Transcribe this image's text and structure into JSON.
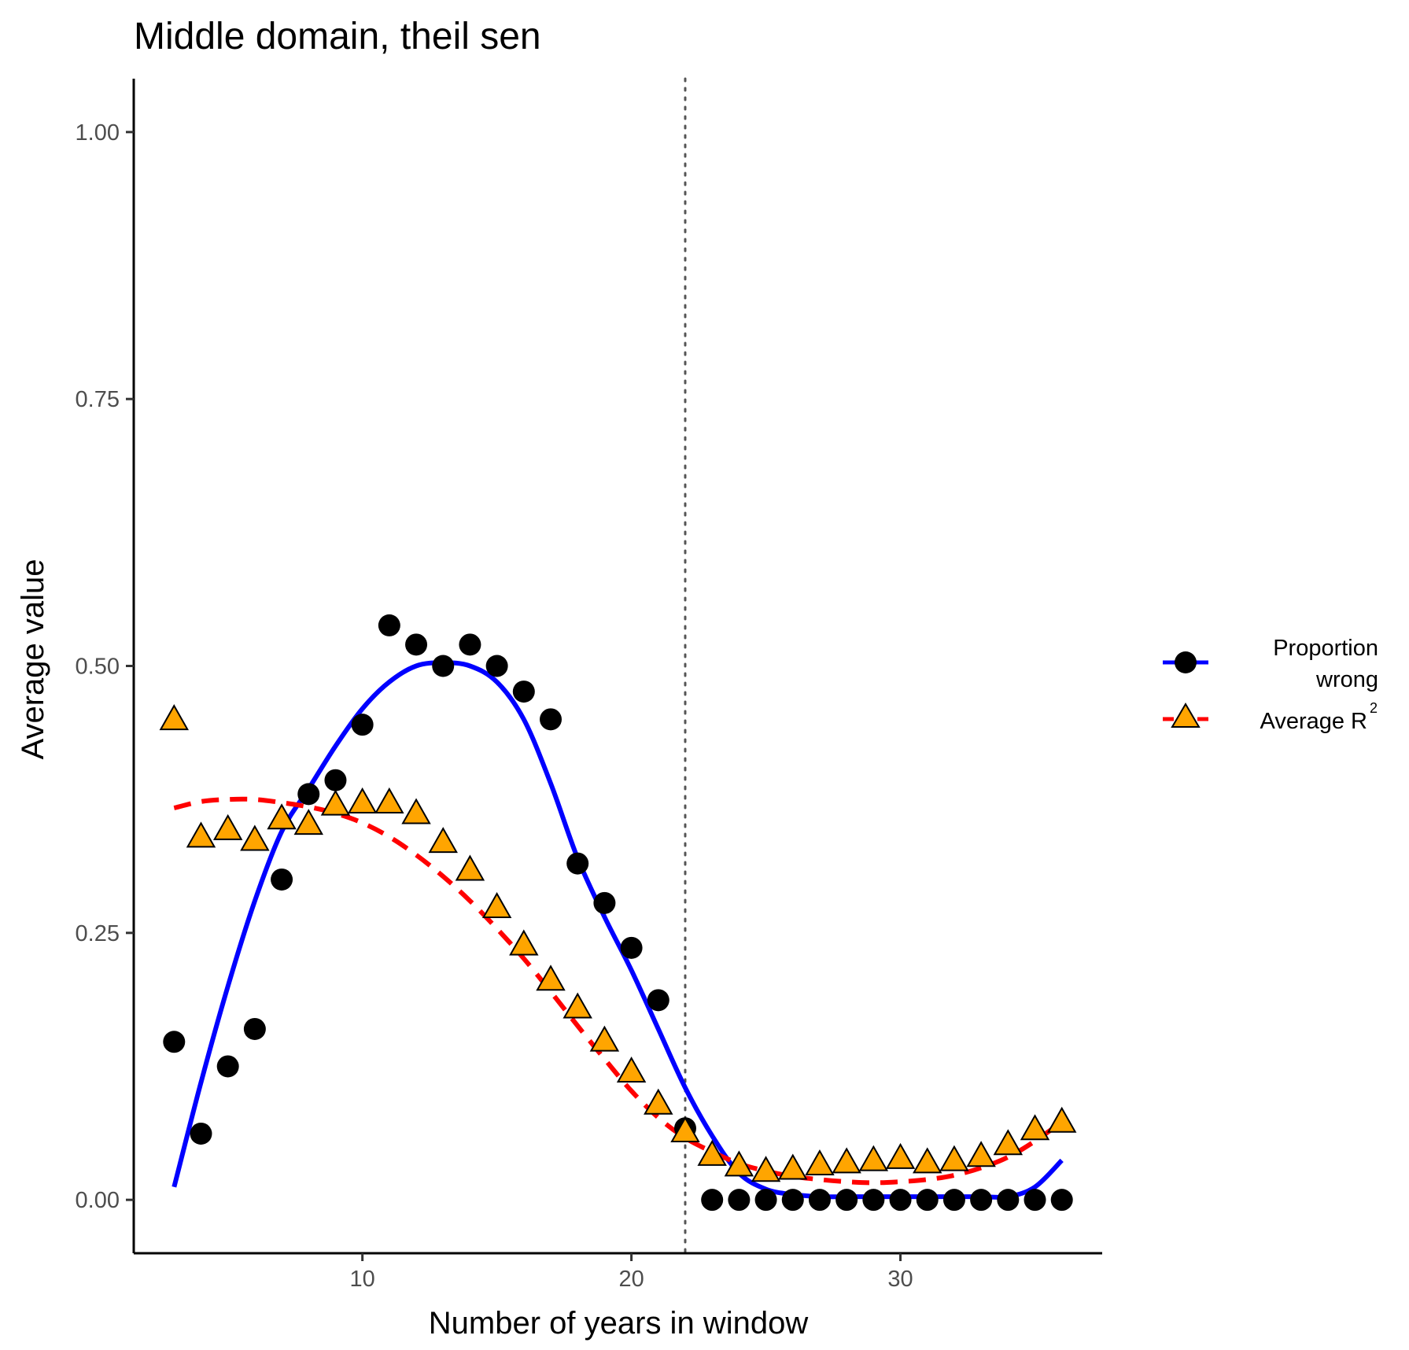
{
  "chart_data": {
    "type": "scatter",
    "title": "Middle domain, theil sen",
    "xlabel": "Number of years in window",
    "ylabel": "Average value",
    "xlim": [
      1.5,
      37.5
    ],
    "ylim": [
      -0.05,
      1.05
    ],
    "x_ticks": [
      10,
      20,
      30
    ],
    "x_tick_labels": [
      "10",
      "20",
      "30"
    ],
    "y_ticks": [
      0,
      0.25,
      0.5,
      0.75,
      1.0
    ],
    "y_tick_labels": [
      "0.00",
      "0.25",
      "0.50",
      "0.75",
      "1.00"
    ],
    "grid": false,
    "legend_position": "right",
    "vline": {
      "x": 22,
      "style": "dotted",
      "color": "#555555"
    },
    "series": [
      {
        "name_line1": "Proportion",
        "name_line2": "wrong",
        "marker": "circle",
        "marker_color": "#000000",
        "line_color": "#0000ff",
        "line_style": "solid",
        "x": [
          3,
          4,
          5,
          6,
          7,
          8,
          9,
          10,
          11,
          12,
          13,
          14,
          15,
          16,
          17,
          18,
          19,
          20,
          21,
          22,
          23,
          24,
          25,
          26,
          27,
          28,
          29,
          30,
          31,
          32,
          33,
          34,
          35,
          36
        ],
        "values": [
          0.148,
          0.062,
          0.125,
          0.16,
          0.3,
          0.38,
          0.393,
          0.445,
          0.538,
          0.52,
          0.5,
          0.52,
          0.5,
          0.476,
          0.45,
          0.315,
          0.278,
          0.236,
          0.187,
          0.067,
          0.0,
          0.0,
          0.0,
          0.0,
          0.0,
          0.0,
          0.0,
          0.0,
          0.0,
          0.0,
          0.0,
          0.0,
          0.0,
          0.0
        ],
        "fit_x": [
          3,
          4,
          5,
          6,
          7,
          8,
          9,
          10,
          11,
          12,
          13,
          14,
          15,
          16,
          17,
          18,
          19,
          20,
          21,
          22,
          23,
          24,
          25,
          26,
          27,
          28,
          29,
          30,
          31,
          32,
          33,
          34,
          35,
          36
        ],
        "fit_values": [
          0.012,
          0.11,
          0.2,
          0.28,
          0.345,
          0.385,
          0.425,
          0.46,
          0.485,
          0.5,
          0.503,
          0.5,
          0.485,
          0.45,
          0.39,
          0.32,
          0.265,
          0.215,
          0.16,
          0.105,
          0.06,
          0.025,
          0.01,
          0.005,
          0.003,
          0.003,
          0.003,
          0.003,
          0.003,
          0.003,
          0.003,
          0.003,
          0.012,
          0.037
        ]
      },
      {
        "name_prefix": "Average R",
        "name_sup": "2",
        "marker": "triangle",
        "marker_color": "#ffa500",
        "line_color": "#ff0000",
        "line_style": "dashed",
        "x": [
          3,
          4,
          5,
          6,
          7,
          8,
          9,
          10,
          11,
          12,
          13,
          14,
          15,
          16,
          17,
          18,
          19,
          20,
          21,
          22,
          23,
          24,
          25,
          26,
          27,
          28,
          29,
          30,
          31,
          32,
          33,
          34,
          35,
          36
        ],
        "values": [
          0.448,
          0.338,
          0.345,
          0.335,
          0.355,
          0.35,
          0.368,
          0.37,
          0.37,
          0.36,
          0.333,
          0.307,
          0.272,
          0.237,
          0.204,
          0.178,
          0.147,
          0.118,
          0.088,
          0.062,
          0.04,
          0.03,
          0.025,
          0.027,
          0.031,
          0.033,
          0.035,
          0.037,
          0.033,
          0.035,
          0.039,
          0.05,
          0.064,
          0.071
        ],
        "fit_x": [
          3,
          4,
          5,
          6,
          7,
          8,
          9,
          10,
          11,
          12,
          13,
          14,
          15,
          16,
          17,
          18,
          19,
          20,
          21,
          22,
          23,
          24,
          25,
          26,
          27,
          28,
          29,
          30,
          31,
          32,
          33,
          34,
          35,
          36
        ],
        "fit_values": [
          0.367,
          0.373,
          0.375,
          0.375,
          0.372,
          0.368,
          0.362,
          0.353,
          0.34,
          0.323,
          0.303,
          0.28,
          0.254,
          0.226,
          0.195,
          0.163,
          0.132,
          0.102,
          0.077,
          0.058,
          0.045,
          0.034,
          0.027,
          0.022,
          0.019,
          0.017,
          0.016,
          0.017,
          0.019,
          0.023,
          0.03,
          0.04,
          0.055,
          0.073
        ]
      }
    ]
  }
}
